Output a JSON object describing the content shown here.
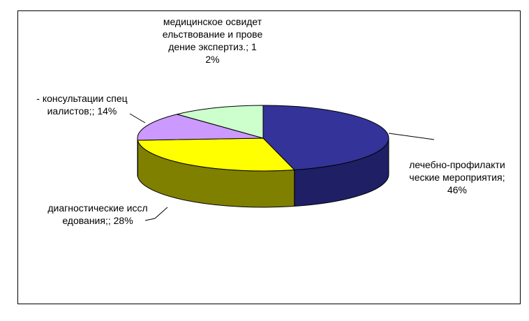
{
  "chart_data": {
    "type": "pie3d",
    "categories": [
      "лечебно-профилактические мероприятия",
      "диагностические исследования;",
      "- консультации специалистов;",
      "медицинское освидетельствование и проведение экспертиз."
    ],
    "values": [
      46,
      28,
      14,
      12
    ],
    "value_labels": [
      "46%",
      "28%",
      "14%",
      "12%"
    ],
    "label_separator": "; ",
    "colors": [
      "#333399",
      "#ffff00",
      "#cc99ff",
      "#ccffcc"
    ],
    "side_colors": [
      "#1f1f66",
      "#808000",
      "#7a5c99",
      "#7a997a"
    ]
  }
}
